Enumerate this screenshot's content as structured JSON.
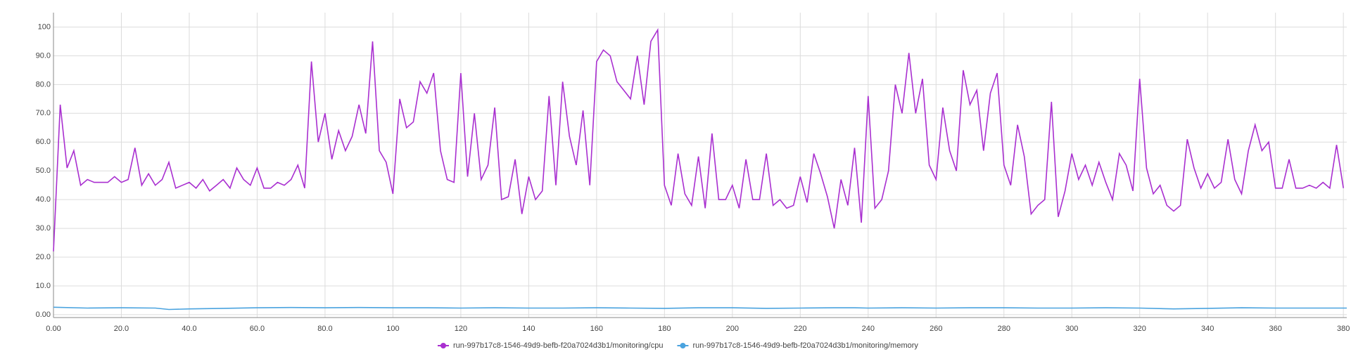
{
  "chart_data": {
    "type": "line",
    "xlim": [
      0,
      381
    ],
    "ylim": [
      -1,
      105
    ],
    "xticks": [
      {
        "value": 0,
        "label": "0.00"
      },
      {
        "value": 20,
        "label": "20.0"
      },
      {
        "value": 40,
        "label": "40.0"
      },
      {
        "value": 60,
        "label": "60.0"
      },
      {
        "value": 80,
        "label": "80.0"
      },
      100,
      120,
      140,
      160,
      180,
      200,
      220,
      240,
      260,
      280,
      300,
      320,
      340,
      360,
      380
    ],
    "yticks": [
      {
        "value": 0,
        "label": "0.00"
      },
      {
        "value": 10,
        "label": "10.0"
      },
      {
        "value": 20,
        "label": "20.0"
      },
      {
        "value": 30,
        "label": "30.0"
      },
      {
        "value": 40,
        "label": "40.0"
      },
      {
        "value": 50,
        "label": "50.0"
      },
      {
        "value": 60,
        "label": "60.0"
      },
      {
        "value": 70,
        "label": "70.0"
      },
      {
        "value": 80,
        "label": "80.0"
      },
      {
        "value": 90,
        "label": "90.0"
      },
      100
    ],
    "grid": true,
    "legend": "bottom",
    "series": [
      {
        "name": "run-997b17c8-1546-49d9-befb-f20a7024d3b1/monitoring/cpu",
        "color": "#a92fd0",
        "x": [
          0,
          2,
          4,
          6,
          8,
          10,
          12,
          14,
          16,
          18,
          20,
          22,
          24,
          26,
          28,
          30,
          32,
          34,
          36,
          38,
          40,
          42,
          44,
          46,
          48,
          50,
          52,
          54,
          56,
          58,
          60,
          62,
          64,
          66,
          68,
          70,
          72,
          74,
          76,
          78,
          80,
          82,
          84,
          86,
          88,
          90,
          92,
          94,
          96,
          98,
          100,
          102,
          104,
          106,
          108,
          110,
          112,
          114,
          116,
          118,
          120,
          122,
          124,
          126,
          128,
          130,
          132,
          134,
          136,
          138,
          140,
          142,
          144,
          146,
          148,
          150,
          152,
          154,
          156,
          158,
          160,
          162,
          164,
          166,
          168,
          170,
          172,
          174,
          176,
          178,
          180,
          182,
          184,
          186,
          188,
          190,
          192,
          194,
          196,
          198,
          200,
          202,
          204,
          206,
          208,
          210,
          212,
          214,
          216,
          218,
          220,
          222,
          224,
          226,
          228,
          230,
          232,
          234,
          236,
          238,
          240,
          242,
          244,
          246,
          248,
          250,
          252,
          254,
          256,
          258,
          260,
          262,
          264,
          266,
          268,
          270,
          272,
          274,
          276,
          278,
          280,
          282,
          284,
          286,
          288,
          290,
          292,
          294,
          296,
          298,
          300,
          302,
          304,
          306,
          308,
          310,
          312,
          314,
          316,
          318,
          320,
          322,
          324,
          326,
          328,
          330,
          332,
          334,
          336,
          338,
          340,
          342,
          344,
          346,
          348,
          350,
          352,
          354,
          356,
          358,
          360,
          362,
          364,
          366,
          368,
          370,
          372,
          374,
          376,
          378,
          380
        ],
        "values": [
          22,
          73,
          51,
          57,
          45,
          47,
          46,
          46,
          46,
          48,
          46,
          47,
          58,
          45,
          49,
          45,
          47,
          53,
          44,
          45,
          46,
          44,
          47,
          43,
          45,
          47,
          44,
          51,
          47,
          45,
          51,
          44,
          44,
          46,
          45,
          47,
          52,
          44,
          88,
          60,
          70,
          54,
          64,
          57,
          62,
          73,
          63,
          95,
          57,
          53,
          42,
          75,
          65,
          67,
          81,
          77,
          84,
          57,
          47,
          46,
          84,
          48,
          70,
          47,
          52,
          72,
          40,
          41,
          54,
          35,
          48,
          40,
          43,
          76,
          45,
          81,
          62,
          52,
          71,
          45,
          88,
          92,
          90,
          81,
          78,
          75,
          90,
          73,
          95,
          99,
          45,
          38,
          56,
          42,
          38,
          55,
          37,
          63,
          40,
          40,
          45,
          37,
          54,
          40,
          40,
          56,
          38,
          40,
          37,
          38,
          48,
          39,
          56,
          49,
          41,
          30,
          47,
          38,
          58,
          32,
          76,
          37,
          40,
          50,
          80,
          70,
          91,
          70,
          82,
          52,
          47,
          72,
          57,
          50,
          85,
          73,
          78,
          57,
          77,
          84,
          52,
          45,
          66,
          55,
          35,
          38,
          40,
          74,
          34,
          43,
          56,
          47,
          52,
          45,
          53,
          46,
          40,
          56,
          52,
          43,
          82,
          51,
          42,
          45,
          38,
          36,
          38,
          61,
          51,
          44,
          49,
          44,
          46,
          61,
          47,
          42,
          57,
          66,
          57,
          60,
          44,
          44,
          54,
          44,
          44,
          45,
          44,
          46,
          44,
          59,
          44
        ]
      },
      {
        "name": "run-997b17c8-1546-49d9-befb-f20a7024d3b1/monitoring/memory",
        "color": "#4aa3df",
        "x": [
          0,
          10,
          20,
          30,
          34,
          40,
          50,
          60,
          70,
          80,
          90,
          100,
          110,
          120,
          130,
          140,
          150,
          160,
          170,
          180,
          190,
          200,
          210,
          220,
          230,
          236,
          240,
          250,
          260,
          270,
          280,
          290,
          300,
          310,
          320,
          330,
          340,
          350,
          360,
          370,
          381
        ],
        "values": [
          2.6,
          2.3,
          2.4,
          2.3,
          1.8,
          2.0,
          2.2,
          2.4,
          2.5,
          2.4,
          2.5,
          2.4,
          2.4,
          2.3,
          2.4,
          2.3,
          2.3,
          2.4,
          2.3,
          2.2,
          2.4,
          2.4,
          2.2,
          2.3,
          2.4,
          2.4,
          2.3,
          2.4,
          2.3,
          2.4,
          2.4,
          2.3,
          2.3,
          2.4,
          2.3,
          2.0,
          2.2,
          2.4,
          2.3,
          2.3,
          2.3
        ]
      }
    ]
  }
}
